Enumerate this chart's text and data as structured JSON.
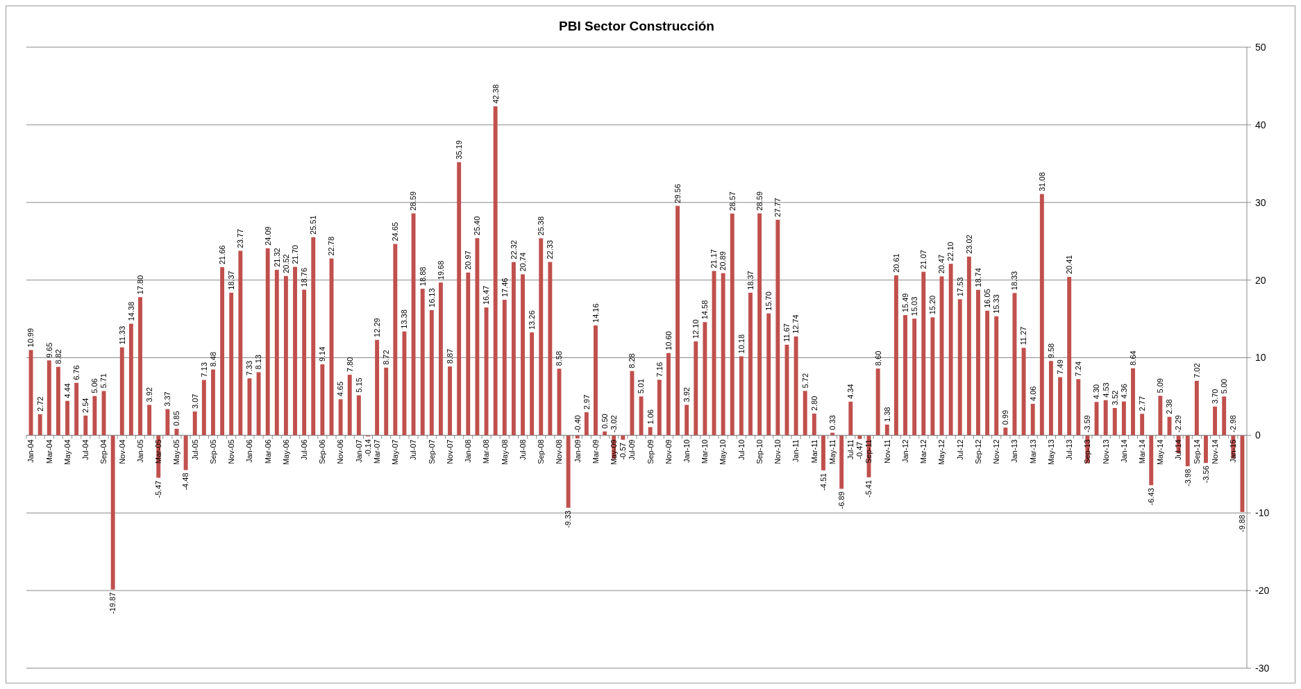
{
  "chart_data": {
    "type": "bar",
    "title": "PBI Sector Construcción",
    "categories": [
      "Jan-04",
      null,
      "Mar-04",
      null,
      "May-04",
      null,
      "Jul-04",
      null,
      "Sep-04",
      null,
      "Nov-04",
      null,
      "Jan-05",
      null,
      "Mar-05",
      null,
      "May-05",
      null,
      "Jul-05",
      null,
      "Sep-05",
      null,
      "Nov-05",
      null,
      "Jan-06",
      null,
      "Mar-06",
      null,
      "May-06",
      null,
      "Jul-06",
      null,
      "Sep-06",
      null,
      "Nov-06",
      null,
      "Jan-07",
      null,
      "Mar-07",
      null,
      "May-07",
      null,
      "Jul-07",
      null,
      "Sep-07",
      null,
      "Nov-07",
      null,
      "Jan-08",
      null,
      "Mar-08",
      null,
      "May-08",
      null,
      "Jul-08",
      null,
      "Sep-08",
      null,
      "Nov-08",
      null,
      "Jan-09",
      null,
      "Mar-09",
      null,
      "May-09",
      null,
      "Jul-09",
      null,
      "Sep-09",
      null,
      "Nov-09",
      null,
      "Jan-10",
      null,
      "Mar-10",
      null,
      "May-10",
      null,
      "Jul-10",
      null,
      "Sep-10",
      null,
      "Nov-10",
      null,
      "Jan-11",
      null,
      "Mar-11",
      null,
      "May-11",
      null,
      "Jul-11",
      null,
      "Sep-11",
      null,
      "Nov-11",
      null,
      "Jan-12",
      null,
      "Mar-12",
      null,
      "May-12",
      null,
      "Jul-12",
      null,
      "Sep-12",
      null,
      "Nov-12",
      null,
      "Jan-13",
      null,
      "Mar-13",
      null,
      "May-13",
      null,
      "Jul-13",
      null,
      "Sep-13",
      null,
      "Nov-13",
      null,
      "Jan-14",
      null,
      "Mar-14",
      null,
      "May-14",
      null,
      "Jul-14",
      null,
      "Sep-14",
      null,
      "Nov-14",
      null,
      "Jan-15",
      null
    ],
    "values": [
      10.99,
      2.72,
      9.65,
      8.82,
      4.44,
      6.76,
      2.54,
      5.06,
      5.71,
      -19.87,
      11.33,
      14.38,
      17.8,
      3.92,
      -5.47,
      3.37,
      0.85,
      -4.48,
      3.07,
      7.13,
      8.48,
      21.66,
      18.37,
      23.77,
      7.33,
      8.13,
      24.09,
      21.32,
      20.52,
      21.7,
      18.76,
      25.51,
      9.14,
      22.78,
      4.65,
      7.8,
      5.15,
      -0.14,
      12.29,
      8.72,
      24.65,
      13.38,
      28.59,
      18.88,
      16.13,
      19.68,
      8.87,
      35.19,
      20.97,
      25.4,
      16.47,
      42.38,
      17.46,
      22.32,
      20.74,
      13.26,
      25.38,
      22.33,
      8.58,
      -9.33,
      -0.4,
      2.97,
      14.16,
      0.5,
      -3.02,
      -0.57,
      8.28,
      5.01,
      1.06,
      7.16,
      10.6,
      29.56,
      3.92,
      12.1,
      14.58,
      21.17,
      20.89,
      28.57,
      10.18,
      18.37,
      28.59,
      15.7,
      27.77,
      11.67,
      12.74,
      5.72,
      2.8,
      -4.51,
      0.33,
      -6.89,
      4.34,
      -0.47,
      -5.41,
      8.6,
      1.38,
      20.61,
      15.49,
      15.03,
      21.07,
      15.2,
      20.47,
      22.1,
      17.53,
      23.02,
      18.74,
      16.05,
      15.33,
      0.99,
      18.33,
      11.27,
      4.06,
      31.08,
      9.58,
      7.49,
      20.41,
      7.24,
      -3.59,
      4.3,
      4.53,
      3.52,
      4.36,
      8.64,
      2.77,
      -6.43,
      5.09,
      2.38,
      -2.29,
      -3.98,
      7.02,
      -3.56,
      3.7,
      5.0,
      -2.98,
      -9.88
    ],
    "value_labels": [
      "10.99",
      "2.72",
      "9.65",
      "8.82",
      "4.44",
      "6.76",
      "2.54",
      "5.06",
      "5.71",
      "-19.87",
      "11.33",
      "14.38",
      "17.80",
      "3.92",
      "-5.47",
      "3.37",
      "0.85",
      "-4.48",
      "3.07",
      "7.13",
      "8.48",
      "21.66",
      "18.37",
      "23.77",
      "7.33",
      "8.13",
      "24.09",
      "21.32",
      "20.52",
      "21.70",
      "18.76",
      "25.51",
      "9.14",
      "22.78",
      "4.65",
      "7.80",
      "5.15",
      "-0.14",
      "12.29",
      "8.72",
      "24.65",
      "13.38",
      "28.59",
      "18.88",
      "16.13",
      "19.68",
      "8.87",
      "35.19",
      "20.97",
      "25.40",
      "16.47",
      "42.38",
      "17.46",
      "22.32",
      "20.74",
      "13.26",
      "25.38",
      "22.33",
      "8.58",
      "-9.33",
      "-0.40",
      "2.97",
      "14.16",
      "0.50",
      "-3.02",
      "-0.57",
      "8.28",
      "5.01",
      "1.06",
      "7.16",
      "10.60",
      "29.56",
      "3.92",
      "12.10",
      "14.58",
      "21.17",
      "20.89",
      "28.57",
      "10.18",
      "18.37",
      "28.59",
      "15.70",
      "27.77",
      "11.67",
      "12.74",
      "5.72",
      "2.80",
      "-4.51",
      "0.33",
      "-6.89",
      "4.34",
      "-0.47",
      "-5.41",
      "8.60",
      "1.38",
      "20.61",
      "15.49",
      "15.03",
      "21.07",
      "15.20",
      "20.47",
      "22.10",
      "17.53",
      "23.02",
      "18.74",
      "16.05",
      "15.33",
      "0.99",
      "18.33",
      "11.27",
      "4.06",
      "31.08",
      "9.58",
      "7.49",
      "20.41",
      "7.24",
      "-3.59",
      "4.30",
      "4.53",
      "3.52",
      "4.36",
      "8.64",
      "2.77",
      "-6.43",
      "5.09",
      "2.38",
      "-2.29",
      "-3.98",
      "7.02",
      "-3.56",
      "3.70",
      "5.00",
      "-2.98",
      "-9.88"
    ],
    "color": "#c0504d",
    "ylim": [
      -30,
      50
    ],
    "yticks": [
      -30,
      -20,
      -10,
      0,
      10,
      20,
      30,
      40,
      50
    ],
    "grid": "y"
  }
}
